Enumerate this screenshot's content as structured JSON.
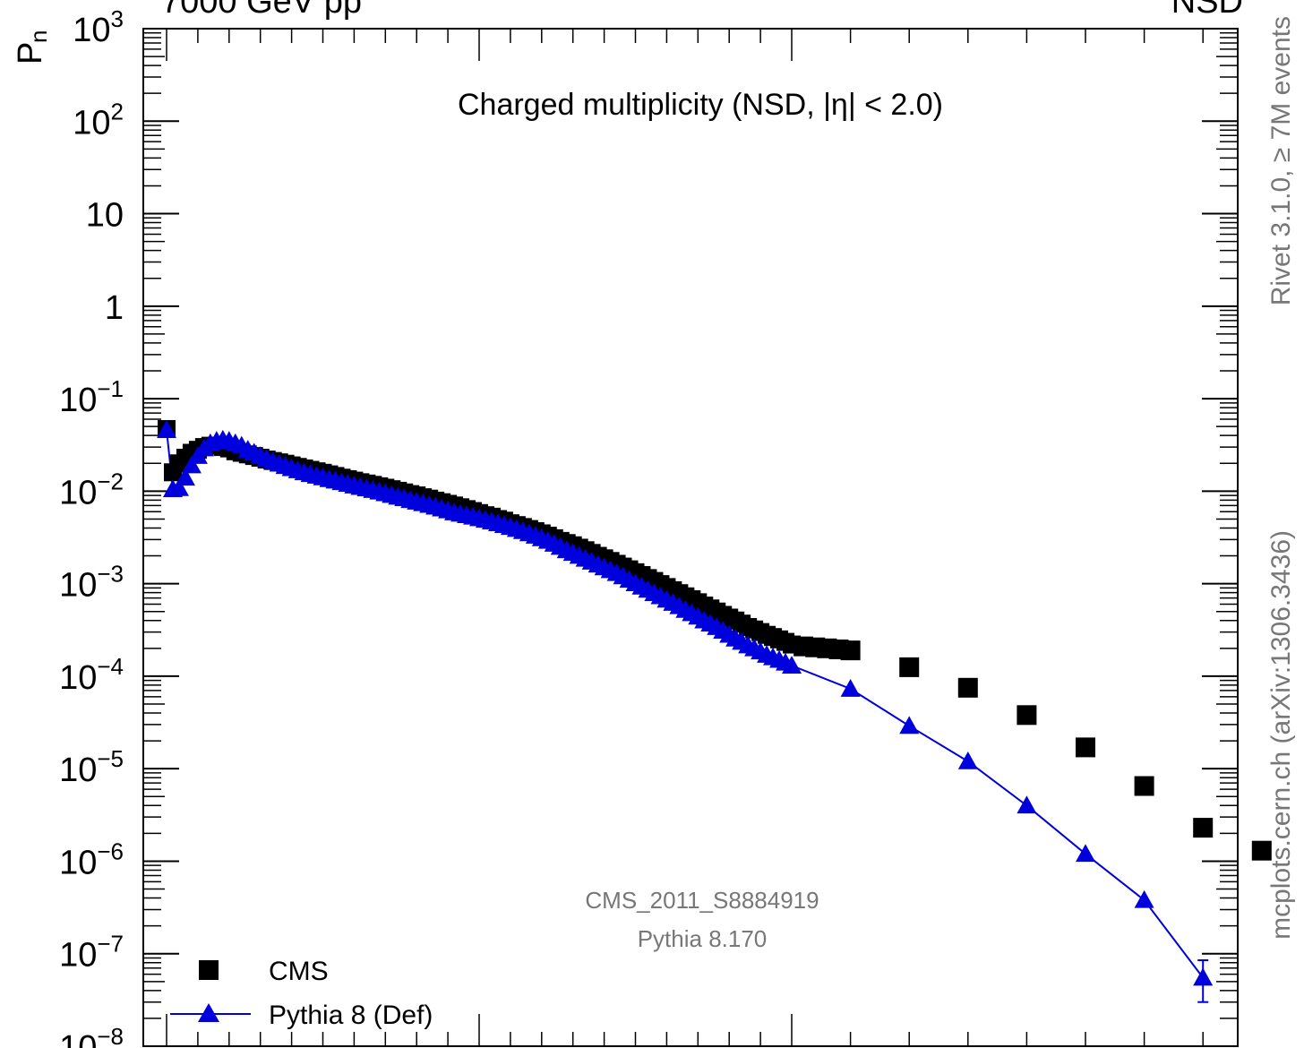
{
  "header": {
    "left": "7000 GeV pp",
    "right": "NSD"
  },
  "side": {
    "top": "Rivet 3.1.0, ≥ 7M events",
    "bottom": "mcplots.cern.ch (arXiv:1306.3436)"
  },
  "colors": {
    "data": "#000000",
    "mc": "#0000dd",
    "watermark": "#777777",
    "axis": "#000000"
  },
  "chart_data": {
    "type": "scatter",
    "title": "Charged multiplicity (NSD, |η| < 2.0)",
    "ylabel": "P",
    "ylabel_sub": "n",
    "yscale": "log",
    "ylim": [
      1e-08,
      1000
    ],
    "yticks": [
      {
        "v": 1000,
        "base": "10",
        "exp": "3"
      },
      {
        "v": 100,
        "base": "10",
        "exp": "2"
      },
      {
        "v": 10,
        "base": "10",
        "exp": ""
      },
      {
        "v": 1,
        "base": "1",
        "exp": ""
      },
      {
        "v": 0.1,
        "base": "10",
        "exp": "−1"
      },
      {
        "v": 0.01,
        "base": "10",
        "exp": "−2"
      },
      {
        "v": 0.001,
        "base": "10",
        "exp": "−3"
      },
      {
        "v": 0.0001,
        "base": "10",
        "exp": "−4"
      },
      {
        "v": 1e-05,
        "base": "10",
        "exp": "−5"
      },
      {
        "v": 1e-06,
        "base": "10",
        "exp": "−6"
      },
      {
        "v": 1e-07,
        "base": "10",
        "exp": "−7"
      },
      {
        "v": 1e-08,
        "base": "10",
        "exp": "−8"
      }
    ],
    "xlim": [
      0,
      185
    ],
    "annotations": {
      "analysis": "CMS_2011_S8884919",
      "generator": "Pythia 8.170"
    },
    "legend": {
      "placement": "bottom-left",
      "entries": [
        "CMS",
        "Pythia 8 (Def)"
      ]
    },
    "series": [
      {
        "name": "CMS",
        "marker": "square",
        "x": [
          0,
          1,
          2,
          3,
          4,
          5,
          6,
          7,
          8,
          9,
          10,
          11,
          12,
          13,
          14,
          15,
          16,
          17,
          18,
          19,
          20,
          21,
          22,
          23,
          24,
          25,
          26,
          27,
          28,
          29,
          30,
          31,
          32,
          33,
          34,
          35,
          36,
          37,
          38,
          39,
          40,
          41,
          42,
          43,
          44,
          45,
          46,
          47,
          48,
          49,
          50,
          51,
          52,
          53,
          54,
          55,
          56,
          57,
          58,
          59,
          60,
          61,
          62,
          63,
          64,
          65,
          66,
          67,
          68,
          69,
          70,
          71,
          72,
          73,
          74,
          75,
          76,
          77,
          78,
          79,
          80,
          81,
          82,
          83,
          84,
          85,
          86,
          87,
          88,
          89,
          90,
          91,
          92,
          93,
          94,
          95,
          96,
          97,
          98,
          99,
          100,
          101,
          102,
          103,
          104,
          105,
          110,
          115,
          120,
          125,
          130,
          135,
          140,
          145,
          150,
          160,
          170,
          180
        ],
        "y": [
          0.047,
          0.016,
          0.02,
          0.023,
          0.026,
          0.028,
          0.03,
          0.031,
          0.031,
          0.03,
          0.029,
          0.027,
          0.026,
          0.025,
          0.024,
          0.023,
          0.022,
          0.0212,
          0.0205,
          0.0198,
          0.019,
          0.0183,
          0.0176,
          0.017,
          0.0164,
          0.0158,
          0.0152,
          0.0146,
          0.014,
          0.0135,
          0.013,
          0.0125,
          0.0121,
          0.0117,
          0.0113,
          0.0109,
          0.0105,
          0.0101,
          0.0097,
          0.0093,
          0.009,
          0.0086,
          0.0083,
          0.0079,
          0.0076,
          0.0073,
          0.007,
          0.0067,
          0.0064,
          0.0061,
          0.0058,
          0.0055,
          0.0053,
          0.005,
          0.0048,
          0.0045,
          0.0043,
          0.0041,
          0.0039,
          0.0037,
          0.0035,
          0.0033,
          0.0031,
          0.0029,
          0.00275,
          0.0026,
          0.00245,
          0.0023,
          0.00215,
          0.002,
          0.00188,
          0.00176,
          0.00164,
          0.00153,
          0.00143,
          0.00133,
          0.00124,
          0.00115,
          0.00107,
          0.00099,
          0.00092,
          0.00085,
          0.00079,
          0.00073,
          0.00068,
          0.00063,
          0.00058,
          0.00054,
          0.0005,
          0.00046,
          0.00043,
          0.0004,
          0.00037,
          0.00034,
          0.00032,
          0.0003,
          0.00028,
          0.000265,
          0.00025,
          0.000235,
          0.00022,
          0.00021,
          0.000205,
          0.0002,
          0.000195,
          0.00019,
          0.000125,
          7.5e-05,
          3.8e-05,
          1.7e-05,
          6.5e-06,
          2.3e-06,
          1.3e-06,
          0,
          0,
          0,
          0,
          0
        ],
        "note_trailing_zero_values": "ignored"
      },
      {
        "name": "Pythia 8 (Def)",
        "marker": "triangle",
        "x": [
          0,
          1,
          2,
          3,
          4,
          5,
          6,
          7,
          8,
          9,
          10,
          11,
          12,
          13,
          14,
          15,
          16,
          17,
          18,
          19,
          20,
          21,
          22,
          23,
          24,
          25,
          26,
          27,
          28,
          29,
          30,
          31,
          32,
          33,
          34,
          35,
          36,
          37,
          38,
          39,
          40,
          41,
          42,
          43,
          44,
          45,
          46,
          47,
          48,
          49,
          50,
          51,
          52,
          53,
          54,
          55,
          56,
          57,
          58,
          59,
          60,
          61,
          62,
          63,
          64,
          65,
          66,
          67,
          68,
          69,
          70,
          71,
          72,
          73,
          74,
          75,
          76,
          77,
          78,
          79,
          80,
          81,
          82,
          83,
          84,
          85,
          86,
          87,
          88,
          89,
          90,
          91,
          92,
          93,
          94,
          95,
          96,
          97,
          98,
          99,
          100,
          105,
          110,
          115,
          120,
          125,
          130,
          135,
          140,
          145,
          150
        ],
        "y": [
          0.046,
          0.0105,
          0.0108,
          0.014,
          0.019,
          0.024,
          0.029,
          0.033,
          0.035,
          0.036,
          0.035,
          0.033,
          0.031,
          0.028,
          0.026,
          0.024,
          0.0225,
          0.021,
          0.0198,
          0.0187,
          0.0177,
          0.0168,
          0.016,
          0.0153,
          0.0147,
          0.0141,
          0.0135,
          0.013,
          0.0125,
          0.012,
          0.0115,
          0.0111,
          0.0107,
          0.0103,
          0.0099,
          0.0095,
          0.0091,
          0.0087,
          0.0084,
          0.008,
          0.0077,
          0.0074,
          0.0071,
          0.0068,
          0.0065,
          0.0062,
          0.0059,
          0.0057,
          0.0055,
          0.0053,
          0.0051,
          0.0049,
          0.0047,
          0.0045,
          0.0043,
          0.0041,
          0.0039,
          0.0037,
          0.0035,
          0.0033,
          0.0031,
          0.0029,
          0.0027,
          0.0025,
          0.0023,
          0.00215,
          0.002,
          0.00186,
          0.00173,
          0.00161,
          0.0015,
          0.0014,
          0.0013,
          0.0012,
          0.0011,
          0.00101,
          0.00093,
          0.00086,
          0.00079,
          0.00073,
          0.00067,
          0.00062,
          0.00057,
          0.00052,
          0.00048,
          0.00044,
          0.0004,
          0.00037,
          0.00034,
          0.00031,
          0.00028,
          0.000255,
          0.000235,
          0.000215,
          0.0002,
          0.000185,
          0.00017,
          0.00016,
          0.00015,
          0.00014,
          0.00013,
          7.3e-05,
          2.9e-05,
          1.2e-05,
          4e-06,
          1.2e-06,
          3.8e-07,
          5.5e-08,
          0,
          0,
          0
        ],
        "error_last": [
          3e-08,
          8.5e-08
        ]
      }
    ]
  }
}
